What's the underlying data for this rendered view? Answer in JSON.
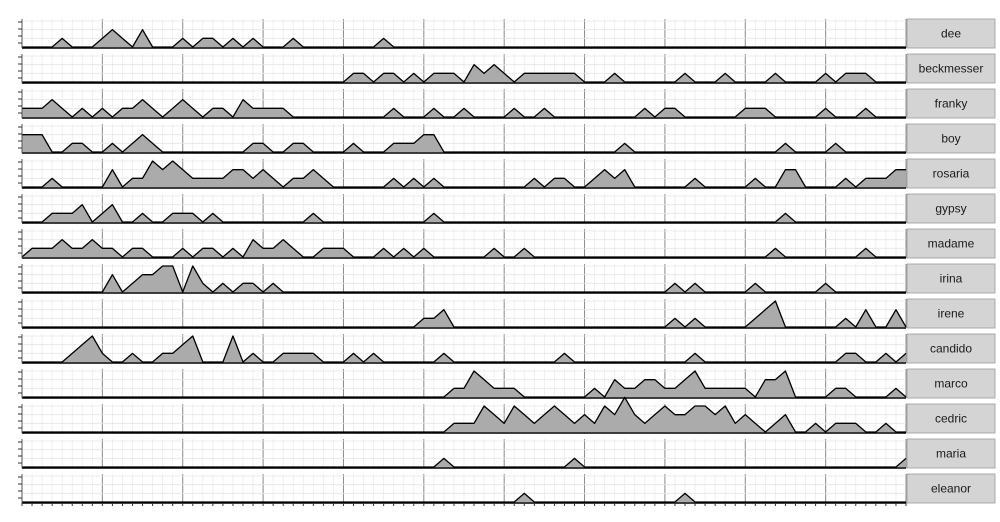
{
  "chart_data": {
    "type": "area",
    "layout": "small-multiples",
    "x": [
      0,
      1,
      2,
      3,
      4,
      5,
      6,
      7,
      8,
      9,
      10,
      11,
      12,
      13,
      14,
      15,
      16,
      17,
      18,
      19,
      20,
      21,
      22,
      23,
      24,
      25,
      26,
      27,
      28,
      29,
      30,
      31,
      32,
      33,
      34,
      35,
      36,
      37,
      38,
      39,
      40,
      41,
      42,
      43,
      44,
      45,
      46,
      47,
      48,
      49,
      50,
      51,
      52,
      53,
      54,
      55,
      56,
      57,
      58,
      59,
      60,
      61,
      62,
      63,
      64,
      65,
      66,
      67,
      68,
      69,
      70,
      71,
      72,
      73,
      74,
      75,
      76,
      77,
      78,
      79,
      80,
      81,
      82,
      83,
      84,
      85,
      86,
      87,
      88
    ],
    "xlim": [
      0,
      88
    ],
    "ylim": [
      0,
      3
    ],
    "x_major_every": 8,
    "grid": true,
    "fill_color": "#ababab",
    "line_color": "#000000",
    "strip_color": "#d4d4d4",
    "series": [
      {
        "name": "dee",
        "values": [
          0,
          0,
          0,
          0,
          1,
          0,
          0,
          0,
          1,
          2,
          1,
          0,
          2,
          0,
          0,
          0,
          1,
          0,
          1,
          1,
          0,
          1,
          0,
          1,
          0,
          0,
          0,
          1,
          0,
          0,
          0,
          0,
          0,
          0,
          0,
          0,
          1,
          0,
          0,
          0,
          0,
          0,
          0,
          0,
          0,
          0,
          0,
          0,
          0,
          0,
          0,
          0,
          0,
          0,
          0,
          0,
          0,
          0,
          0,
          0,
          0,
          0,
          0,
          0,
          0,
          0,
          0,
          0,
          0,
          0,
          0,
          0,
          0,
          0,
          0,
          0,
          0,
          0,
          0,
          0,
          0,
          0,
          0,
          0,
          0,
          0,
          0,
          0,
          0
        ]
      },
      {
        "name": "beckmesser",
        "values": [
          0,
          0,
          0,
          0,
          0,
          0,
          0,
          0,
          0,
          0,
          0,
          0,
          0,
          0,
          0,
          0,
          0,
          0,
          0,
          0,
          0,
          0,
          0,
          0,
          0,
          0,
          0,
          0,
          0,
          0,
          0,
          0,
          0,
          1,
          1,
          0,
          1,
          1,
          0,
          1,
          0,
          1,
          1,
          1,
          0,
          2,
          1,
          2,
          1,
          0,
          1,
          1,
          1,
          1,
          1,
          1,
          0,
          0,
          0,
          1,
          0,
          0,
          0,
          0,
          0,
          0,
          1,
          0,
          0,
          0,
          1,
          0,
          0,
          0,
          0,
          1,
          0,
          0,
          0,
          0,
          1,
          0,
          1,
          1,
          1,
          0,
          0,
          0,
          0
        ]
      },
      {
        "name": "franky",
        "values": [
          1,
          1,
          1,
          2,
          1,
          0,
          1,
          0,
          1,
          0,
          1,
          1,
          2,
          1,
          0,
          1,
          2,
          1,
          0,
          1,
          1,
          0,
          2,
          1,
          1,
          1,
          1,
          0,
          0,
          0,
          0,
          0,
          0,
          0,
          0,
          0,
          0,
          1,
          0,
          0,
          0,
          1,
          0,
          0,
          1,
          0,
          0,
          0,
          0,
          1,
          0,
          0,
          1,
          0,
          0,
          0,
          0,
          0,
          0,
          0,
          0,
          0,
          1,
          0,
          1,
          1,
          0,
          0,
          0,
          0,
          0,
          0,
          1,
          1,
          1,
          0,
          0,
          0,
          0,
          0,
          1,
          0,
          0,
          0,
          1,
          0,
          0,
          0,
          0
        ]
      },
      {
        "name": "boy",
        "values": [
          2,
          2,
          2,
          0,
          0,
          1,
          1,
          0,
          0,
          1,
          0,
          1,
          2,
          1,
          0,
          0,
          0,
          0,
          0,
          0,
          0,
          0,
          0,
          1,
          1,
          0,
          0,
          1,
          1,
          0,
          0,
          0,
          0,
          1,
          0,
          0,
          0,
          1,
          1,
          1,
          2,
          2,
          0,
          0,
          0,
          0,
          0,
          0,
          0,
          0,
          0,
          0,
          0,
          0,
          0,
          0,
          0,
          0,
          0,
          0,
          1,
          0,
          0,
          0,
          0,
          0,
          0,
          0,
          0,
          0,
          0,
          0,
          0,
          0,
          0,
          0,
          1,
          0,
          0,
          0,
          0,
          1,
          0,
          0,
          0,
          0,
          0,
          0,
          0
        ]
      },
      {
        "name": "rosaria",
        "values": [
          0,
          0,
          0,
          1,
          0,
          0,
          0,
          0,
          0,
          2,
          0,
          1,
          1,
          3,
          2,
          3,
          2,
          1,
          1,
          1,
          1,
          2,
          2,
          1,
          2,
          1,
          0,
          1,
          1,
          2,
          1,
          0,
          0,
          0,
          0,
          0,
          0,
          1,
          0,
          1,
          0,
          1,
          0,
          0,
          0,
          0,
          0,
          0,
          0,
          0,
          0,
          1,
          0,
          1,
          1,
          0,
          0,
          1,
          2,
          1,
          2,
          0,
          0,
          0,
          0,
          0,
          0,
          1,
          0,
          0,
          0,
          0,
          0,
          1,
          0,
          0,
          2,
          2,
          0,
          0,
          0,
          0,
          1,
          0,
          1,
          1,
          1,
          2,
          2
        ]
      },
      {
        "name": "gypsy",
        "values": [
          0,
          0,
          0,
          1,
          1,
          1,
          2,
          0,
          1,
          2,
          0,
          0,
          1,
          0,
          0,
          1,
          1,
          1,
          0,
          1,
          0,
          0,
          0,
          0,
          0,
          0,
          0,
          0,
          0,
          1,
          0,
          0,
          0,
          0,
          0,
          0,
          0,
          0,
          0,
          0,
          0,
          1,
          0,
          0,
          0,
          0,
          0,
          0,
          0,
          0,
          0,
          0,
          0,
          0,
          0,
          0,
          0,
          0,
          0,
          0,
          0,
          0,
          0,
          0,
          0,
          0,
          0,
          0,
          0,
          0,
          0,
          0,
          0,
          0,
          0,
          0,
          1,
          0,
          0,
          0,
          0,
          0,
          0,
          0,
          0,
          0,
          0,
          0,
          0
        ]
      },
      {
        "name": "madame",
        "values": [
          0,
          1,
          1,
          1,
          2,
          1,
          1,
          2,
          1,
          1,
          0,
          1,
          1,
          0,
          0,
          0,
          1,
          0,
          1,
          1,
          0,
          1,
          0,
          2,
          1,
          1,
          2,
          1,
          0,
          0,
          1,
          1,
          1,
          0,
          0,
          0,
          1,
          0,
          1,
          0,
          1,
          0,
          0,
          0,
          0,
          0,
          0,
          1,
          0,
          0,
          1,
          0,
          0,
          0,
          0,
          0,
          0,
          0,
          0,
          0,
          0,
          0,
          0,
          0,
          0,
          0,
          0,
          0,
          0,
          0,
          0,
          0,
          0,
          0,
          0,
          1,
          0,
          0,
          0,
          0,
          0,
          0,
          0,
          0,
          1,
          0,
          0,
          0,
          0
        ]
      },
      {
        "name": "irina",
        "values": [
          0,
          0,
          0,
          0,
          0,
          0,
          0,
          0,
          0,
          2,
          0,
          1,
          2,
          2,
          3,
          3,
          0,
          3,
          1,
          0,
          1,
          0,
          1,
          1,
          0,
          1,
          0,
          0,
          0,
          0,
          0,
          0,
          0,
          0,
          0,
          0,
          0,
          0,
          0,
          0,
          0,
          0,
          0,
          0,
          0,
          0,
          0,
          0,
          0,
          0,
          0,
          0,
          0,
          0,
          0,
          0,
          0,
          0,
          0,
          0,
          0,
          0,
          0,
          0,
          0,
          1,
          0,
          1,
          0,
          0,
          0,
          0,
          0,
          1,
          0,
          0,
          0,
          0,
          0,
          0,
          1,
          0,
          0,
          0,
          0,
          0,
          0,
          0,
          0
        ]
      },
      {
        "name": "irene",
        "values": [
          0,
          0,
          0,
          0,
          0,
          0,
          0,
          0,
          0,
          0,
          0,
          0,
          0,
          0,
          0,
          0,
          0,
          0,
          0,
          0,
          0,
          0,
          0,
          0,
          0,
          0,
          0,
          0,
          0,
          0,
          0,
          0,
          0,
          0,
          0,
          0,
          0,
          0,
          0,
          0,
          1,
          1,
          2,
          0,
          0,
          0,
          0,
          0,
          0,
          0,
          0,
          0,
          0,
          0,
          0,
          0,
          0,
          0,
          0,
          0,
          0,
          0,
          0,
          0,
          0,
          1,
          0,
          1,
          0,
          0,
          0,
          0,
          0,
          1,
          2,
          3,
          0,
          0,
          0,
          0,
          0,
          0,
          1,
          0,
          2,
          0,
          0,
          2,
          0
        ]
      },
      {
        "name": "candido",
        "values": [
          0,
          0,
          0,
          0,
          0,
          1,
          2,
          3,
          1,
          0,
          0,
          1,
          0,
          0,
          1,
          1,
          2,
          3,
          0,
          0,
          0,
          3,
          0,
          1,
          0,
          0,
          1,
          1,
          1,
          1,
          0,
          0,
          0,
          1,
          0,
          1,
          0,
          0,
          0,
          0,
          0,
          0,
          1,
          0,
          0,
          0,
          0,
          0,
          0,
          0,
          0,
          0,
          0,
          0,
          1,
          0,
          0,
          0,
          0,
          0,
          0,
          0,
          0,
          0,
          0,
          0,
          0,
          1,
          0,
          0,
          0,
          0,
          0,
          0,
          0,
          0,
          0,
          0,
          0,
          0,
          0,
          0,
          1,
          1,
          0,
          0,
          1,
          0,
          1
        ]
      },
      {
        "name": "marco",
        "values": [
          0,
          0,
          0,
          0,
          0,
          0,
          0,
          0,
          0,
          0,
          0,
          0,
          0,
          0,
          0,
          0,
          0,
          0,
          0,
          0,
          0,
          0,
          0,
          0,
          0,
          0,
          0,
          0,
          0,
          0,
          0,
          0,
          0,
          0,
          0,
          0,
          0,
          0,
          0,
          0,
          0,
          0,
          0,
          1,
          1,
          3,
          2,
          1,
          1,
          1,
          0,
          0,
          0,
          0,
          0,
          0,
          0,
          1,
          0,
          2,
          1,
          1,
          2,
          2,
          1,
          1,
          2,
          3,
          1,
          1,
          1,
          1,
          1,
          0,
          2,
          2,
          3,
          0,
          0,
          0,
          0,
          1,
          1,
          0,
          0,
          0,
          0,
          1,
          0
        ]
      },
      {
        "name": "cedric",
        "values": [
          0,
          0,
          0,
          0,
          0,
          0,
          0,
          0,
          0,
          0,
          0,
          0,
          0,
          0,
          0,
          0,
          0,
          0,
          0,
          0,
          0,
          0,
          0,
          0,
          0,
          0,
          0,
          0,
          0,
          0,
          0,
          0,
          0,
          0,
          0,
          0,
          0,
          0,
          0,
          0,
          0,
          0,
          0,
          1,
          1,
          1,
          3,
          2,
          1,
          3,
          2,
          1,
          2,
          3,
          2,
          1,
          2,
          1,
          3,
          2,
          4,
          2,
          1,
          2,
          3,
          2,
          2,
          3,
          3,
          2,
          3,
          1,
          2,
          1,
          0,
          1,
          2,
          0,
          0,
          1,
          0,
          1,
          1,
          1,
          0,
          0,
          1,
          0,
          0
        ]
      },
      {
        "name": "maria",
        "values": [
          0,
          0,
          0,
          0,
          0,
          0,
          0,
          0,
          0,
          0,
          0,
          0,
          0,
          0,
          0,
          0,
          0,
          0,
          0,
          0,
          0,
          0,
          0,
          0,
          0,
          0,
          0,
          0,
          0,
          0,
          0,
          0,
          0,
          0,
          0,
          0,
          0,
          0,
          0,
          0,
          0,
          0,
          1,
          0,
          0,
          0,
          0,
          0,
          0,
          0,
          0,
          0,
          0,
          0,
          0,
          1,
          0,
          0,
          0,
          0,
          0,
          0,
          0,
          0,
          0,
          0,
          0,
          0,
          0,
          0,
          0,
          0,
          0,
          0,
          0,
          0,
          0,
          0,
          0,
          0,
          0,
          0,
          0,
          0,
          0,
          0,
          0,
          0,
          1
        ]
      },
      {
        "name": "eleanor",
        "values": [
          0,
          0,
          0,
          0,
          0,
          0,
          0,
          0,
          0,
          0,
          0,
          0,
          0,
          0,
          0,
          0,
          0,
          0,
          0,
          0,
          0,
          0,
          0,
          0,
          0,
          0,
          0,
          0,
          0,
          0,
          0,
          0,
          0,
          0,
          0,
          0,
          0,
          0,
          0,
          0,
          0,
          0,
          0,
          0,
          0,
          0,
          0,
          0,
          0,
          0,
          1,
          0,
          0,
          0,
          0,
          0,
          0,
          0,
          0,
          0,
          0,
          0,
          0,
          0,
          0,
          0,
          1,
          0,
          0,
          0,
          0,
          0,
          0,
          0,
          0,
          0,
          0,
          0,
          0,
          0,
          0,
          0,
          0,
          0,
          0,
          0,
          0,
          0,
          0
        ]
      }
    ]
  }
}
